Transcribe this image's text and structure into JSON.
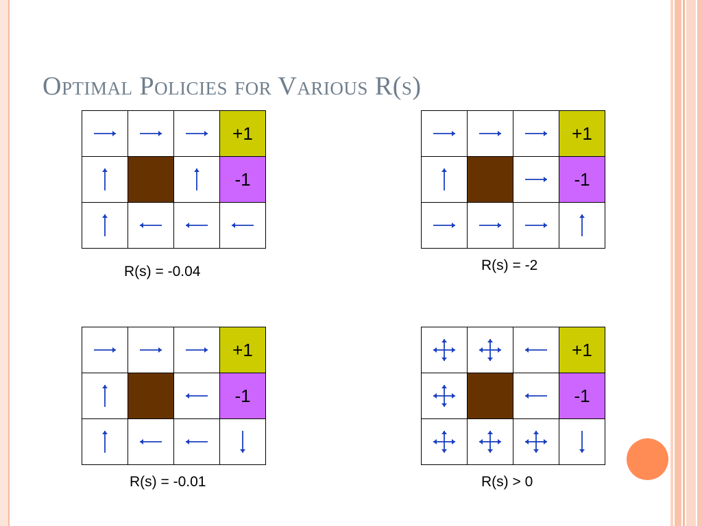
{
  "slide": {
    "title": "Optimal Policies for Various R(s)"
  },
  "colors": {
    "goal": "#cccc00",
    "pit": "#cc66ff",
    "wall": "#663300",
    "arrow": "#1a3fbf",
    "title": "#6f7e8c",
    "accent_circle": "#ff8c55"
  },
  "panels": [
    {
      "caption": "R(s) = -0.04",
      "grid": [
        [
          "right",
          "right",
          "right",
          "+1"
        ],
        [
          "up",
          "wall",
          "up",
          "-1"
        ],
        [
          "up",
          "left",
          "left",
          "left"
        ]
      ]
    },
    {
      "caption": "R(s) = -2",
      "grid": [
        [
          "right",
          "right",
          "right",
          "+1"
        ],
        [
          "up",
          "wall",
          "right",
          "-1"
        ],
        [
          "right",
          "right",
          "right",
          "up"
        ]
      ]
    },
    {
      "caption": "R(s) = -0.01",
      "grid": [
        [
          "right",
          "right",
          "right",
          "+1"
        ],
        [
          "up",
          "wall",
          "left",
          "-1"
        ],
        [
          "up",
          "left",
          "left",
          "down"
        ]
      ]
    },
    {
      "caption": "R(s) > 0",
      "grid": [
        [
          "all",
          "all",
          "left",
          "+1"
        ],
        [
          "all",
          "wall",
          "left",
          "-1"
        ],
        [
          "all",
          "all",
          "all",
          "down"
        ]
      ]
    }
  ]
}
